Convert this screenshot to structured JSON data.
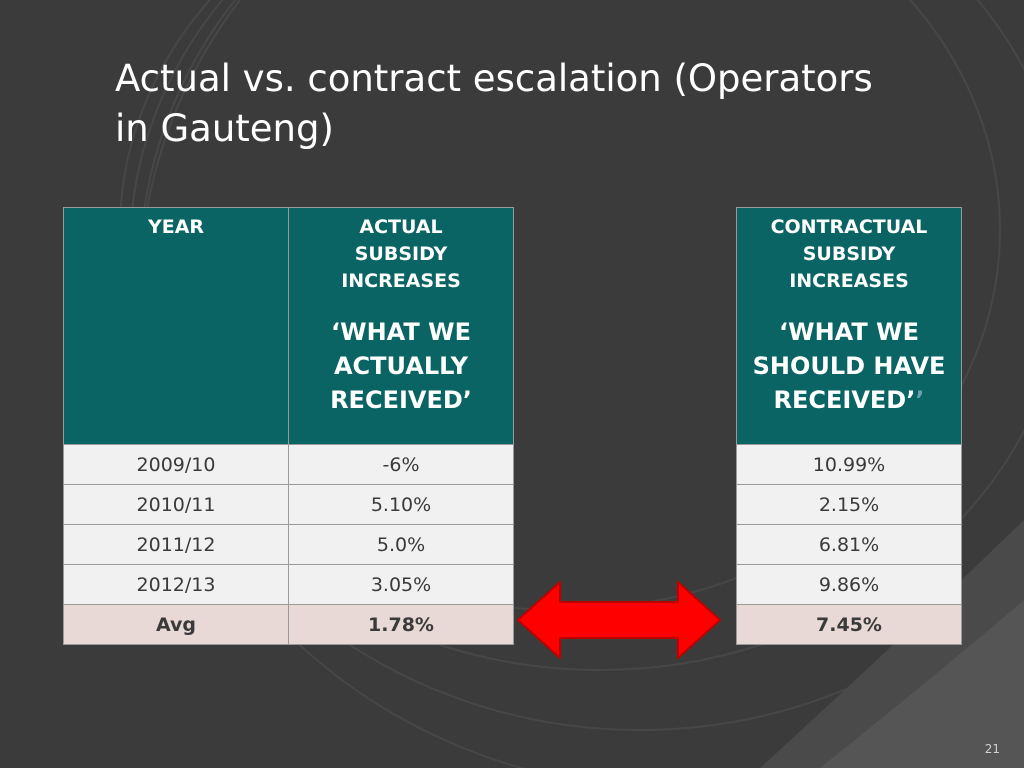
{
  "slide": {
    "title_line1": "Actual vs. contract escalation (Operators",
    "title_line2": "in Gauteng)",
    "page_number": "21"
  },
  "left_table": {
    "headers": {
      "year": "YEAR",
      "actual_top": [
        "ACTUAL",
        "SUBSIDY",
        "INCREASES"
      ],
      "actual_quote": [
        "‘WHAT WE",
        "ACTUALLY",
        "RECEIVED’"
      ]
    },
    "rows": [
      {
        "year": "2009/10",
        "value": "-6%"
      },
      {
        "year": "2010/11",
        "value": "5.10%"
      },
      {
        "year": "2011/12",
        "value": "5.0%"
      },
      {
        "year": "2012/13",
        "value": "3.05%"
      }
    ],
    "avg": {
      "label": "Avg",
      "value": "1.78%"
    }
  },
  "right_table": {
    "headers": {
      "top": [
        "CONTRACTUAL",
        "SUBSIDY",
        "INCREASES"
      ],
      "quote": [
        "‘WHAT WE",
        "SHOULD HAVE",
        "RECEIVED’",
        "’"
      ]
    },
    "rows": [
      "10.99%",
      "2.15%",
      "6.81%",
      "9.86%"
    ],
    "avg": "7.45%"
  },
  "colors": {
    "header_bg": "#0a6464",
    "row_bg": "#f1f1f1",
    "avg_bg": "#e9d9d6",
    "arrow_red": "#ff0000",
    "slide_bg": "#3b3b3b"
  },
  "icons": {
    "arrow": "double-headed-arrow-icon"
  }
}
